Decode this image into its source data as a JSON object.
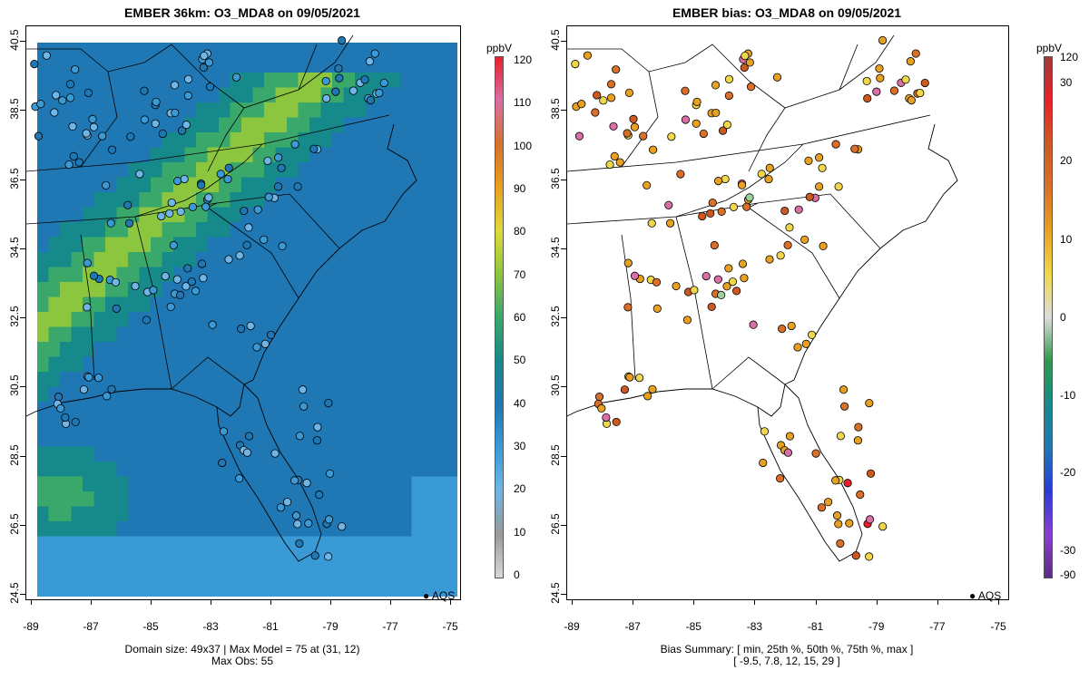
{
  "left_panel": {
    "title": "EMBER 36km: O3_MDA8 on 09/05/2021",
    "x_ticks": [
      "-89",
      "-87",
      "-85",
      "-83",
      "-81",
      "-79",
      "-77",
      "-75"
    ],
    "y_ticks": [
      "24.5",
      "26.5",
      "28.5",
      "30.5",
      "32.5",
      "34.5",
      "36.5",
      "38.5",
      "40.5"
    ],
    "footer_line1": "Domain size: 49x37 | Max Model = 75 at (31, 12)",
    "footer_line2": "Max Obs: 55",
    "legend_unit": "ppbV",
    "legend_ticks": [
      "0",
      "10",
      "20",
      "30",
      "40",
      "50",
      "60",
      "70",
      "80",
      "90",
      "100",
      "110",
      "120"
    ],
    "aqs_label": "AQS"
  },
  "right_panel": {
    "title": "EMBER bias: O3_MDA8 on 09/05/2021",
    "x_ticks": [
      "-89",
      "-87",
      "-85",
      "-83",
      "-81",
      "-79",
      "-77",
      "-75"
    ],
    "y_ticks": [
      "24.5",
      "26.5",
      "28.5",
      "30.5",
      "32.5",
      "34.5",
      "36.5",
      "38.5",
      "40.5"
    ],
    "footer_line1": "Bias Summary: [ min, 25th %, 50th %, 75th %, max ]",
    "footer_line2": "[ -9.5,   7.8,   12,   15,   29 ]",
    "legend_unit": "ppbV",
    "legend_ticks": [
      "-90",
      "-30",
      "-20",
      "-10",
      "0",
      "10",
      "20",
      "30",
      "120"
    ],
    "aqs_label": "AQS"
  },
  "colors": {
    "ozone_scale": [
      "#d9d9d9",
      "#999999",
      "#6fb6e6",
      "#3a9ad6",
      "#1f78b4",
      "#168a8a",
      "#3aa86b",
      "#8cc63f",
      "#e0d93a",
      "#e8a020",
      "#d8702a",
      "#d96fa6",
      "#e8202a"
    ],
    "bias_scale": [
      "#5a2d82",
      "#8a3fd4",
      "#2a3ad8",
      "#1f78b4",
      "#168a8a",
      "#2e9a4a",
      "#dddddd",
      "#f0d74a",
      "#e8a020",
      "#d8702a",
      "#cc5a20",
      "#e8202a",
      "#a03a3a"
    ],
    "station_outline": "#000000"
  }
}
